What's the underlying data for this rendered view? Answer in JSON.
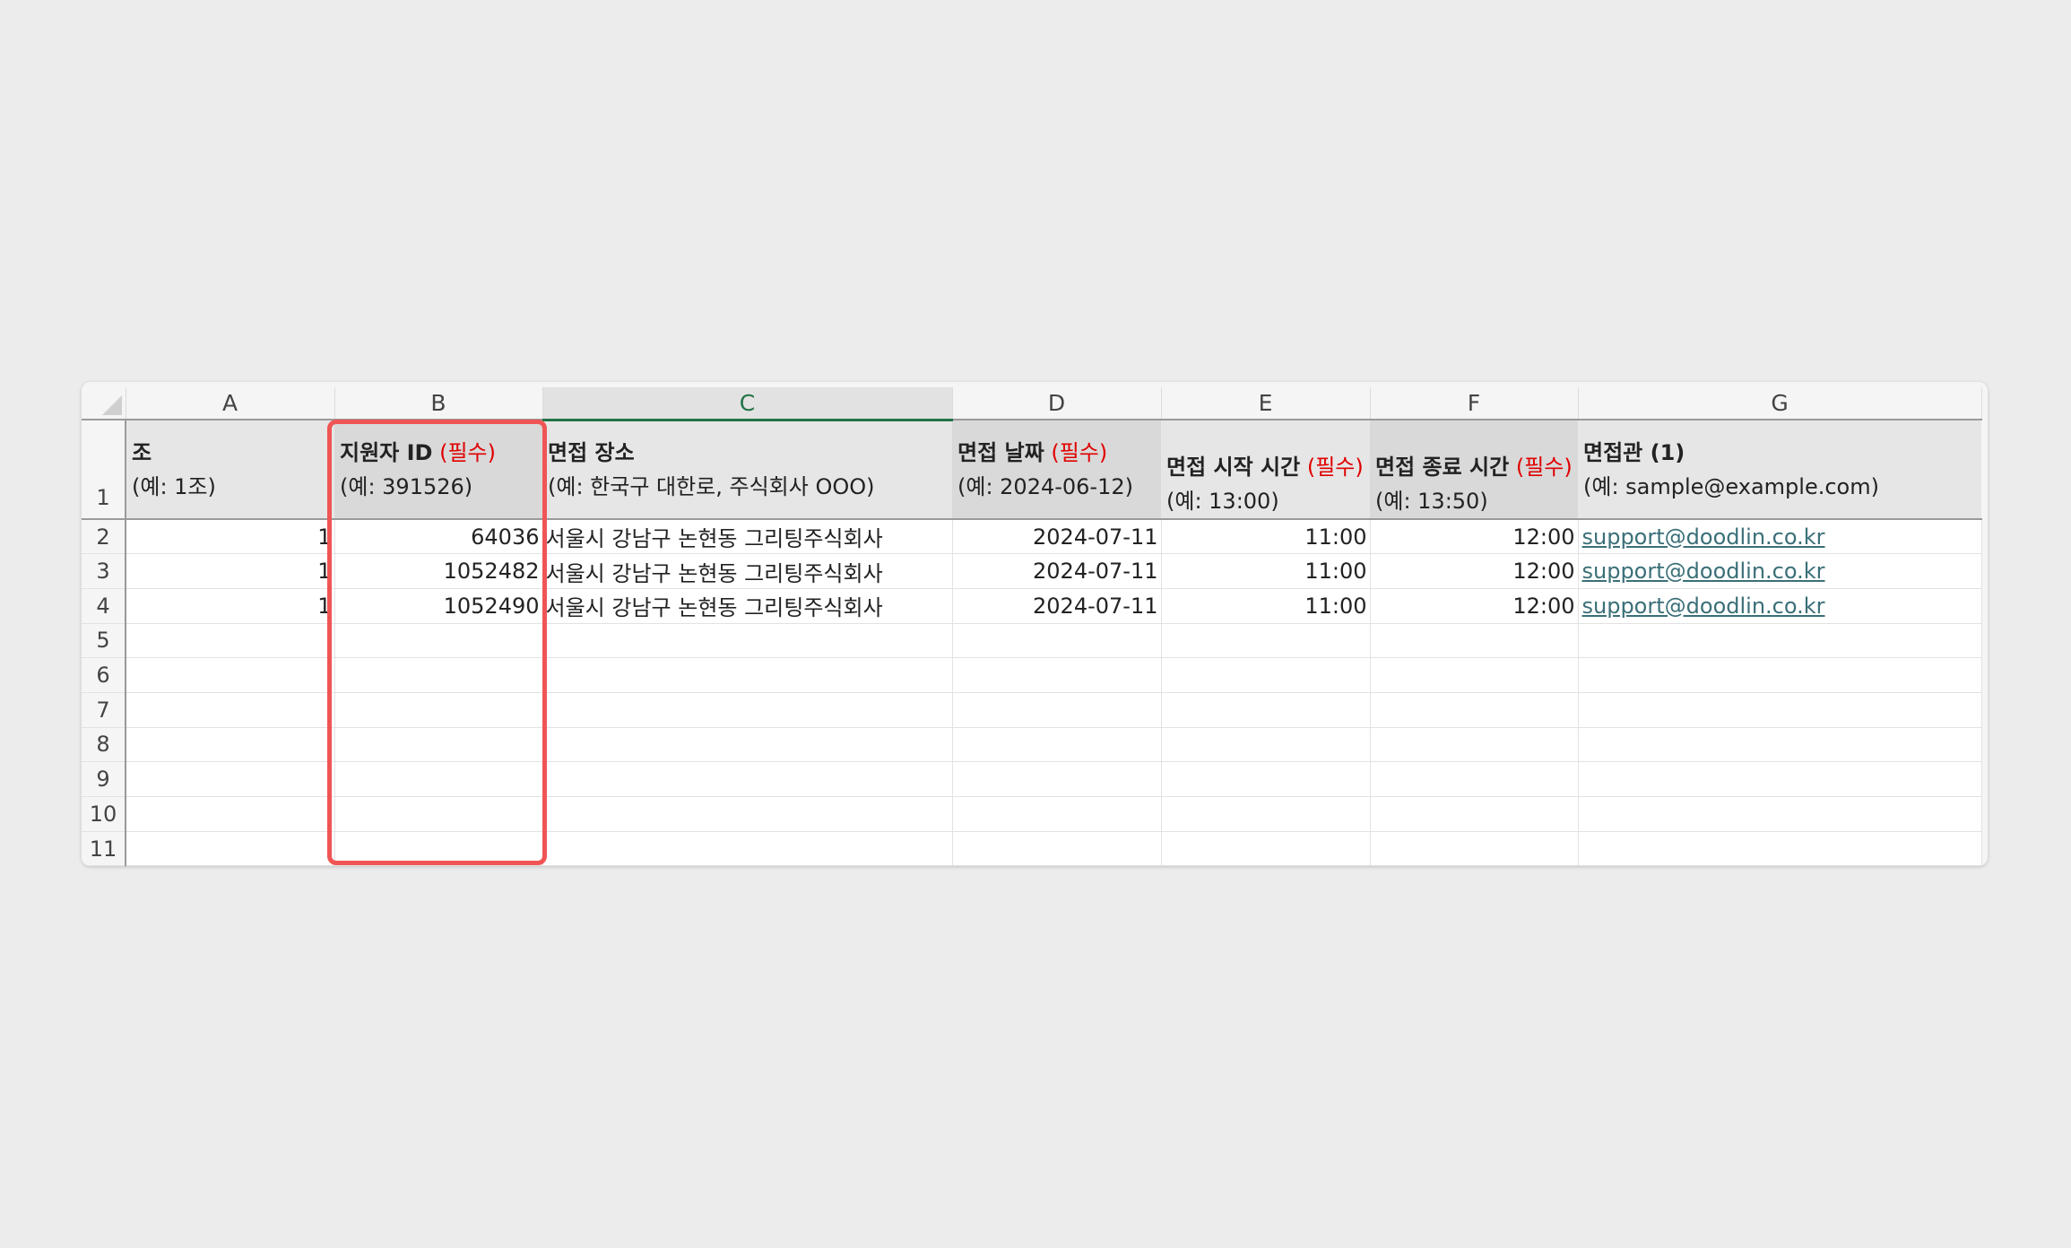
{
  "columns": [
    "A",
    "B",
    "C",
    "D",
    "E",
    "F",
    "G"
  ],
  "selected_column": "C",
  "header_row": {
    "row_number": "1",
    "cells": [
      {
        "title": "조",
        "required": "",
        "example": "(예: 1조)"
      },
      {
        "title": "지원자 ID",
        "required": "(필수)",
        "example": "(예: 391526)"
      },
      {
        "title": "면접 장소",
        "required": "",
        "example": "(예: 한국구 대한로, 주식회사 OOO)"
      },
      {
        "title": "면접 날짜",
        "required": "(필수)",
        "example": "(예: 2024-06-12)"
      },
      {
        "title": "면접 시작 시간",
        "required": "(필수)",
        "example": "(예: 13:00)"
      },
      {
        "title": "면접 종료 시간",
        "required": "(필수)",
        "example": "(예: 13:50)"
      },
      {
        "title": "면접관 (1)",
        "required": "",
        "example": "(예: sample@example.com)"
      }
    ]
  },
  "rows": [
    {
      "n": "2",
      "a": "1",
      "b": "64036",
      "c": "서울시 강남구 논현동 그리팅주식회사",
      "d": "2024-07-11",
      "e": "11:00",
      "f": "12:00",
      "g": "support@doodlin.co.kr"
    },
    {
      "n": "3",
      "a": "1",
      "b": "1052482",
      "c": "서울시 강남구 논현동 그리팅주식회사",
      "d": "2024-07-11",
      "e": "11:00",
      "f": "12:00",
      "g": "support@doodlin.co.kr"
    },
    {
      "n": "4",
      "a": "1",
      "b": "1052490",
      "c": "서울시 강남구 논현동 그리팅주식회사",
      "d": "2024-07-11",
      "e": "11:00",
      "f": "12:00",
      "g": "support@doodlin.co.kr"
    }
  ],
  "empty_rows": [
    "5",
    "6",
    "7",
    "8",
    "9",
    "10",
    "11"
  ],
  "colors": {
    "highlight": "#f05555",
    "required": "#e00000",
    "selected_column": "#217346",
    "link": "#3a6f78"
  }
}
